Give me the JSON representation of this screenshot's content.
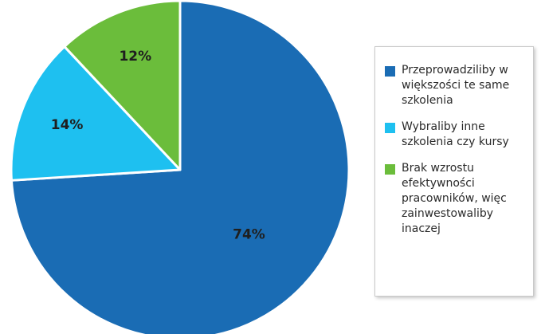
{
  "chart_data": {
    "type": "pie",
    "title": "",
    "slices": [
      {
        "label": "Przeprowadziliby w większości te same szkolenia",
        "value": 74,
        "display": "74%",
        "color": "#1a6cb4"
      },
      {
        "label": "Wybraliby inne szkolenia czy kursy",
        "value": 14,
        "display": "14%",
        "color": "#1ec0f0"
      },
      {
        "label": "Brak wzrostu efektywności pracowników, więc zainwestowaliby inaczej",
        "value": 12,
        "display": "12%",
        "color": "#6bbd3b"
      }
    ],
    "legend_position": "right"
  },
  "legend": {
    "items": [
      {
        "label": "Przeprowadziliby w większości te same szkolenia",
        "color": "#1a6cb4"
      },
      {
        "label": "Wybraliby inne szkolenia czy kursy",
        "color": "#1ec0f0"
      },
      {
        "label": "Brak wzrostu efektywności pracowników, więc zainwestowaliby inaczej",
        "color": "#6bbd3b"
      }
    ]
  }
}
